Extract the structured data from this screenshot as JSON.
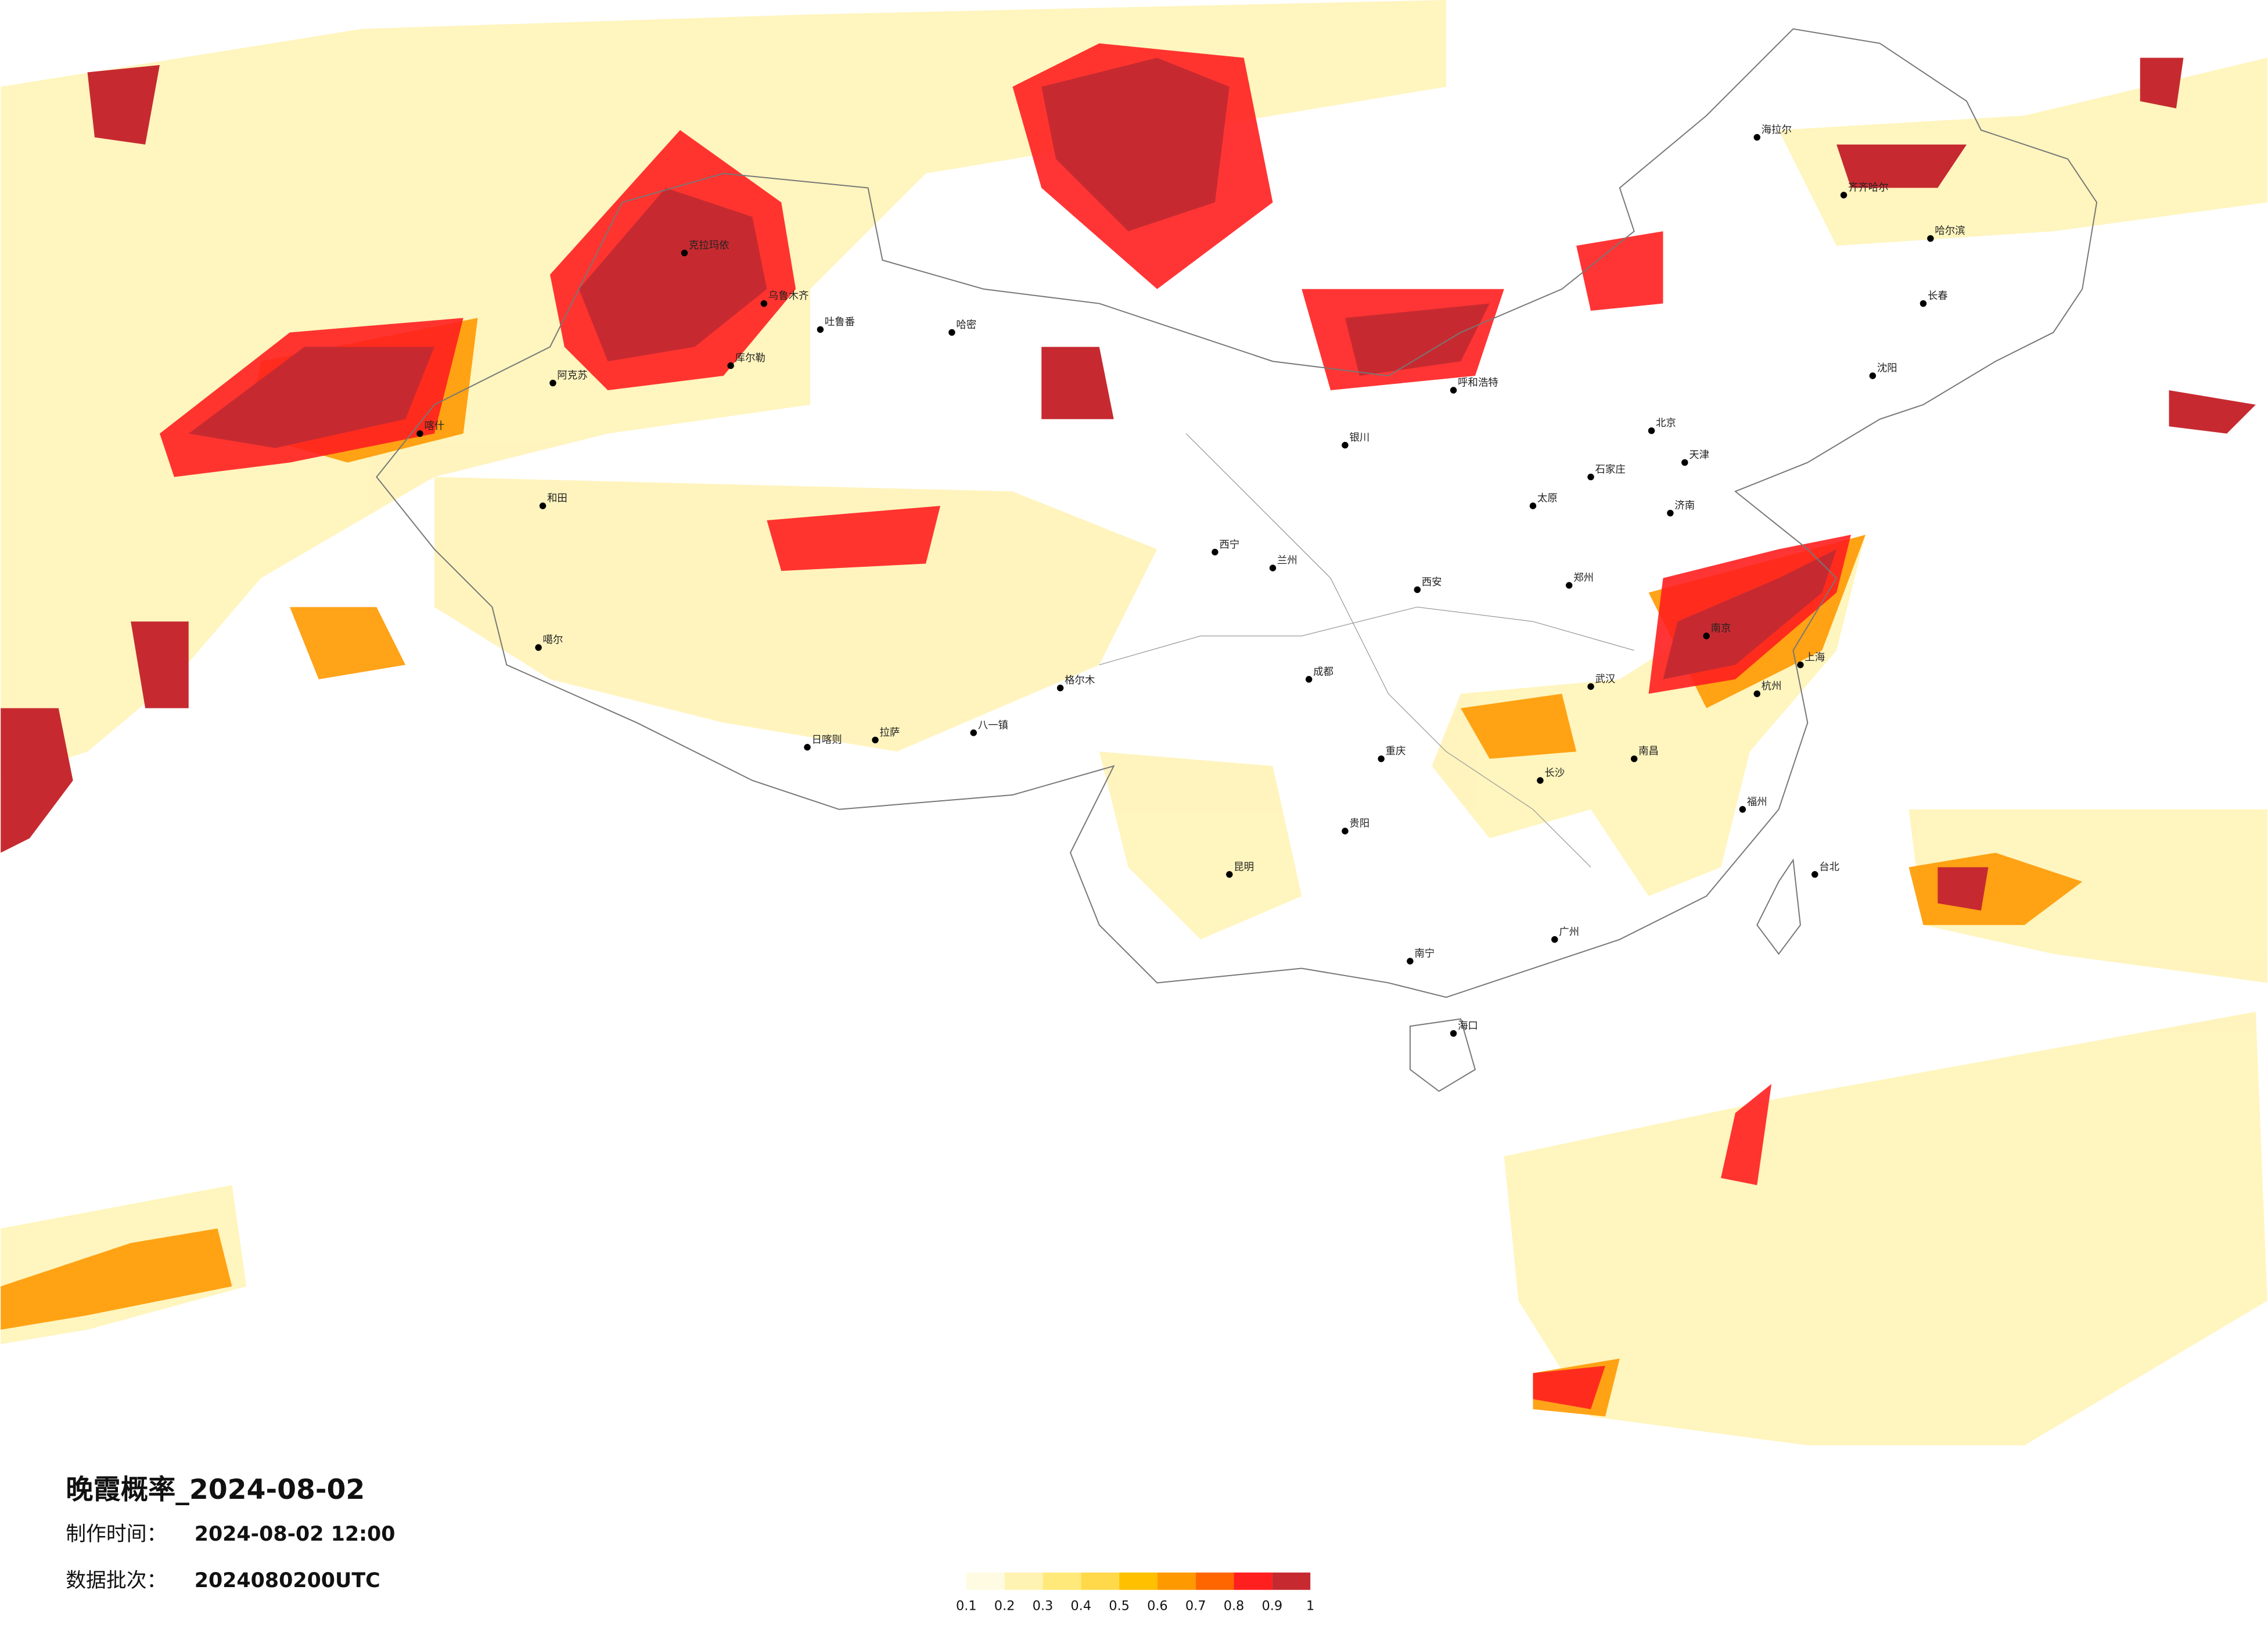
{
  "header": {
    "title": "晚霞概率_2024-08-02",
    "production_time_label": "制作时间：",
    "production_time": "2024-08-02 12:00",
    "batch_label": "数据批次：",
    "batch": "2024080200UTC"
  },
  "legend": {
    "ticks": [
      0.1,
      0.2,
      0.3,
      0.4,
      0.5,
      0.6,
      0.7,
      0.8,
      0.9,
      1
    ],
    "colors": [
      "#fffbe3",
      "#fff3b3",
      "#ffe97a",
      "#ffd94a",
      "#ffc000",
      "#ff9900",
      "#ff6600",
      "#ff1f1f",
      "#c62a30"
    ]
  },
  "cities": [
    "克拉玛依",
    "乌鲁木齐",
    "吐鲁番",
    "哈密",
    "库尔勒",
    "阿克苏",
    "喀什",
    "和田",
    "噶尔",
    "日喀则",
    "拉萨",
    "八一镇",
    "格尔木",
    "西宁",
    "兰州",
    "银川",
    "呼和浩特",
    "北京",
    "天津",
    "石家庄",
    "太原",
    "济南",
    "郑州",
    "西安",
    "成都",
    "重庆",
    "武汉",
    "南京",
    "上海",
    "杭州",
    "长沙",
    "南昌",
    "福州",
    "贵阳",
    "昆明",
    "南宁",
    "广州",
    "海口",
    "台北",
    "哈尔滨",
    "长春",
    "沈阳",
    "海拉尔",
    "齐齐哈尔"
  ]
}
